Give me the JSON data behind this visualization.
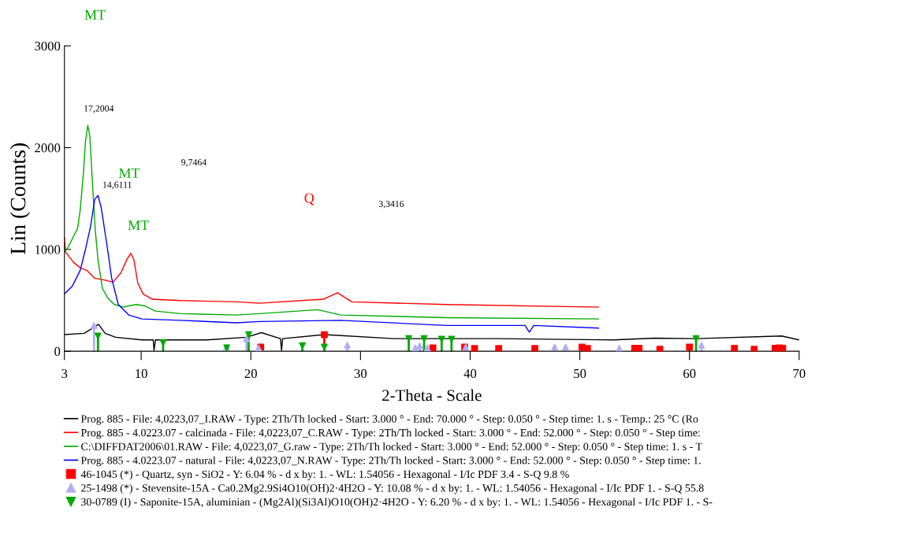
{
  "chart_data": {
    "type": "line",
    "xlabel": "2-Theta - Scale",
    "ylabel": "Lin (Counts)",
    "xlim": [
      3,
      70
    ],
    "ylim": [
      0,
      3000
    ],
    "xticks": [
      3,
      10,
      20,
      30,
      40,
      50,
      60,
      70
    ],
    "yticks": [
      0,
      1000,
      2000,
      3000
    ],
    "grid": false,
    "legend": "bottom",
    "marker": "none",
    "line_style": "solid",
    "series": [
      {
        "name": "Prog. 885 - File: 4,0223,07_I.RAW - Type: 2Th/Th locked - Start: 3.000 ° - End: 70.000 ° - Step: 0.050 ° - Step time: 1. s - Temp.: 25 °C (Ro",
        "color": "#000000",
        "x": [
          3.0,
          4.8,
          5.76,
          6.11,
          6.71,
          7.67,
          10.06,
          11.1,
          11.17,
          11.3,
          16.0,
          19.6,
          20.96,
          22.7,
          22.8,
          22.9,
          26.7,
          33.05,
          42.6,
          53.1,
          56.8,
          60.6,
          68.4,
          70.0
        ],
        "values": [
          163,
          176,
          240,
          265,
          176,
          137,
          111,
          111,
          8,
          111,
          111,
          137,
          183,
          124,
          8,
          124,
          163,
          124,
          124,
          111,
          129,
          124,
          150,
          111
        ]
      },
      {
        "name": "Prog. 885 - 4.0223.07 - calcinada - File: 4,0223,07_C.RAW - Type: 2Th/Th locked - Start: 3.000 ° - End: 52.000 ° - Step: 0.050 ° - Step time:",
        "color": "#ff0000",
        "x": [
          3.0,
          3.1,
          3.84,
          4.44,
          5.04,
          5.76,
          6.47,
          7.43,
          8.14,
          8.74,
          9.06,
          9.34,
          9.7,
          10.18,
          11.0,
          13.6,
          18.7,
          20.8,
          26.6,
          27.9,
          29.2,
          37.8,
          51.7
        ],
        "values": [
          1117,
          975,
          872,
          820,
          795,
          717,
          704,
          679,
          769,
          911,
          962,
          898,
          666,
          563,
          511,
          498,
          485,
          472,
          511,
          575,
          485,
          459,
          433
        ]
      },
      {
        "name": "C:\\DIFFDAT2006\\01.RAW - File: 4,0223,07_G.raw - Type: 2Th/Th locked - Start: 3.000 ° - End: 52.000 ° - Step: 0.050 ° - Step time: 1. s - T",
        "color": "#00aa00",
        "x": [
          3.0,
          3.36,
          3.84,
          4.2,
          4.44,
          4.75,
          4.92,
          5.13,
          5.32,
          5.56,
          5.8,
          6.06,
          6.47,
          6.95,
          7.55,
          8.38,
          8.86,
          9.58,
          10.3,
          11.3,
          13.6,
          18.7,
          20.8,
          26.1,
          28.2,
          37.8,
          51.7
        ],
        "values": [
          975,
          1027,
          1130,
          1207,
          1388,
          1775,
          2059,
          2219,
          2111,
          1646,
          1207,
          898,
          614,
          524,
          459,
          433,
          446,
          459,
          446,
          395,
          369,
          356,
          369,
          408,
          356,
          330,
          317
        ]
      },
      {
        "name": "Prog. 885 - 4.0223.07 - natural - File: 4,0223,07_N.RAW - Type: 2Th/Th locked - Start: 3.000 ° - End: 52.000 ° - Step: 0.050 ° - Step time: 1.",
        "color": "#0000ff",
        "x": [
          3.0,
          3.72,
          4.44,
          4.92,
          5.4,
          5.76,
          6.06,
          6.35,
          6.83,
          7.31,
          7.91,
          8.86,
          10.06,
          13.6,
          18.7,
          20.8,
          28.2,
          37.8,
          45.0,
          45.4,
          45.8,
          51.7
        ],
        "values": [
          563,
          640,
          795,
          1001,
          1233,
          1491,
          1530,
          1414,
          1078,
          717,
          459,
          356,
          317,
          304,
          279,
          292,
          304,
          253,
          253,
          188,
          253,
          227
        ]
      },
      {
        "name": "46-1045 (*) - Quartz, syn - SiO2 - Y: 6.04 % - d x by: 1. - WL: 1.54056 - Hexagonal - I/Ic PDF 3.4 - S-Q 9.8 %",
        "type": "lollipop",
        "marker": "square",
        "color": "#ff0000",
        "x": [
          20.9,
          26.7,
          36.6,
          39.5,
          40.4,
          42.6,
          45.9,
          50.2,
          50.7,
          55.0,
          55.4,
          57.3,
          60.0,
          64.1,
          65.9,
          67.8,
          68.2,
          68.5
        ],
        "values": [
          41,
          163,
          33,
          41,
          27,
          27,
          27,
          41,
          27,
          29,
          29,
          20,
          40,
          29,
          20,
          29,
          33,
          29
        ]
      },
      {
        "name": "25-1498 (*) - Stevensite-15A - Ca0.2Mg2.9Si4O10(OH)2·4H2O - Y: 10.08 % - d x by: 1. - WL: 1.54056 - Hexagonal - I/Ic PDF 1. - S-Q 55.8",
        "type": "lollipop",
        "marker": "triangle",
        "color": "#b0b0f0",
        "x": [
          5.7,
          17.8,
          19.6,
          20.7,
          28.8,
          35.0,
          35.4,
          36.1,
          39.6,
          47.7,
          48.7,
          53.6,
          61.1
        ],
        "values": [
          253,
          41,
          124,
          33,
          60,
          33,
          54,
          33,
          41,
          41,
          41,
          29,
          60
        ]
      },
      {
        "name": "30-0789 (I) - Saponite-15A, aluminian - (Mg2Al)(Si3Al)O10(OH)2·4H2O - Y: 6.20 % - d x by: 1. - WL: 1.54056 - Hexagonal - I/Ic PDF 1. - S-",
        "type": "lollipop",
        "marker": "triangle_down",
        "color": "#00aa00",
        "x": [
          6.06,
          12.0,
          17.8,
          19.8,
          24.7,
          26.7,
          34.4,
          35.8,
          37.4,
          38.3,
          60.6
        ],
        "values": [
          150,
          85,
          33,
          163,
          54,
          41,
          124,
          124,
          119,
          119,
          124
        ]
      }
    ],
    "annotations": [
      "MT",
      "17,2004",
      "9,7464",
      "MT",
      "14,6111",
      "MT",
      "Q",
      "3,3416"
    ]
  }
}
